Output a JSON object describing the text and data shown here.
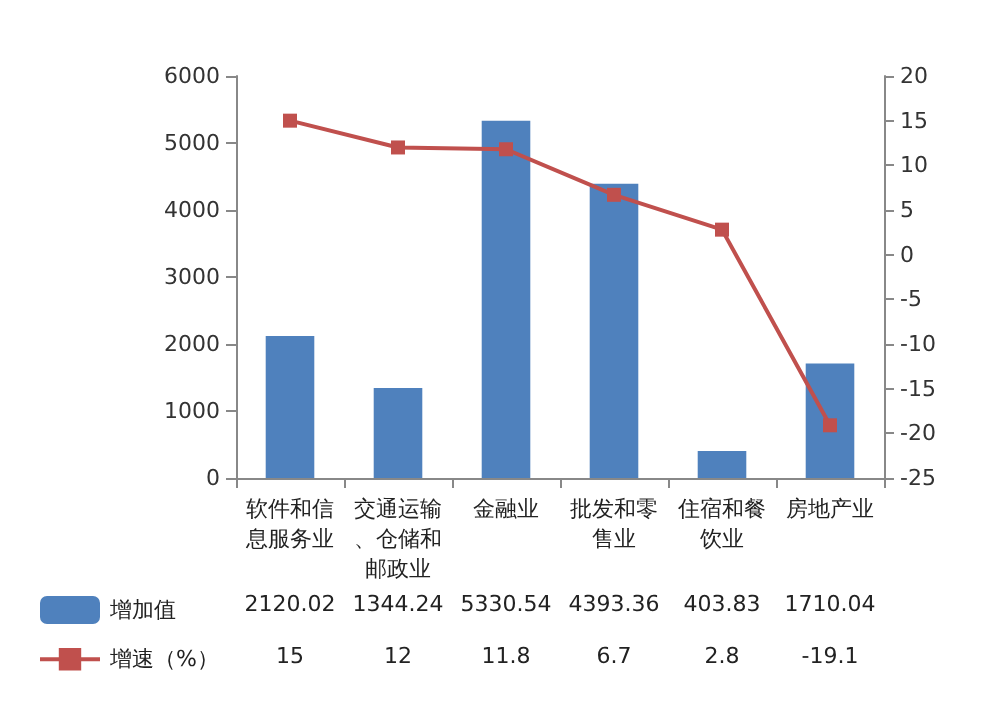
{
  "chart_data": {
    "type": "bar",
    "categories": [
      "软件和信息服务业",
      "交通运输、仓储和邮政业",
      "金融业",
      "批发和零售业",
      "住宿和餐饮业",
      "房地产业"
    ],
    "series": [
      {
        "name": "增加值",
        "color": "#4f81bd",
        "values": [
          2120.02,
          1344.24,
          5330.54,
          4393.36,
          403.83,
          1710.04
        ]
      },
      {
        "name": "增速（%）",
        "type": "line",
        "axis": "y2",
        "color": "#c0504d",
        "marker": "square",
        "values": [
          15,
          12,
          11.8,
          6.7,
          2.8,
          -19.1
        ]
      }
    ],
    "ylim": [
      0,
      6000
    ],
    "yticks": [
      0,
      1000,
      2000,
      3000,
      4000,
      5000,
      6000
    ],
    "y2lim": [
      -25,
      20
    ],
    "y2ticks": [
      -25,
      -20,
      -15,
      -10,
      -5,
      0,
      5,
      10,
      15,
      20
    ],
    "grid": false,
    "legend": "bottom",
    "data_labels": true
  }
}
